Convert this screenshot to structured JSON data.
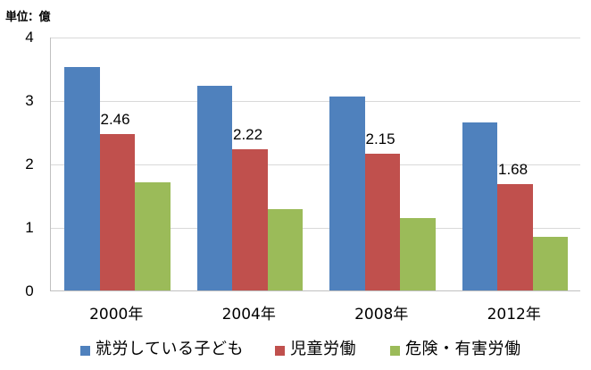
{
  "unit_label": "単位：億",
  "colors": {
    "series0": "#4F81BD",
    "series1": "#C0504D",
    "series2": "#9BBB59",
    "grid": "#D9D9D9",
    "axis": "#C0C0C0"
  },
  "yaxis": {
    "ticks": [
      "4",
      "3",
      "2",
      "1",
      "0"
    ]
  },
  "xaxis": {
    "labels": [
      "2000年",
      "2004年",
      "2008年",
      "2012年"
    ]
  },
  "legend": [
    {
      "label": "就労している子ども",
      "color": "#4F81BD"
    },
    {
      "label": "児童労働",
      "color": "#C0504D"
    },
    {
      "label": "危険・有害労働",
      "color": "#9BBB59"
    }
  ],
  "data_labels": [
    "2.46",
    "2.22",
    "2.15",
    "1.68"
  ],
  "chart_data": {
    "type": "bar",
    "title": "",
    "xlabel": "",
    "ylabel": "単位：億",
    "categories": [
      "2000年",
      "2004年",
      "2008年",
      "2012年"
    ],
    "series": [
      {
        "name": "就労している子ども",
        "values": [
          3.52,
          3.23,
          3.06,
          2.65
        ],
        "color": "#4F81BD"
      },
      {
        "name": "児童労働",
        "values": [
          2.46,
          2.22,
          2.15,
          1.68
        ],
        "color": "#C0504D",
        "data_labels": [
          "2.46",
          "2.22",
          "2.15",
          "1.68"
        ]
      },
      {
        "name": "危険・有害労働",
        "values": [
          1.7,
          1.28,
          1.14,
          0.85
        ],
        "color": "#9BBB59"
      }
    ],
    "ylim": [
      0,
      4
    ],
    "yticks": [
      0,
      1,
      2,
      3,
      4
    ],
    "grid": true,
    "legend_position": "bottom"
  }
}
